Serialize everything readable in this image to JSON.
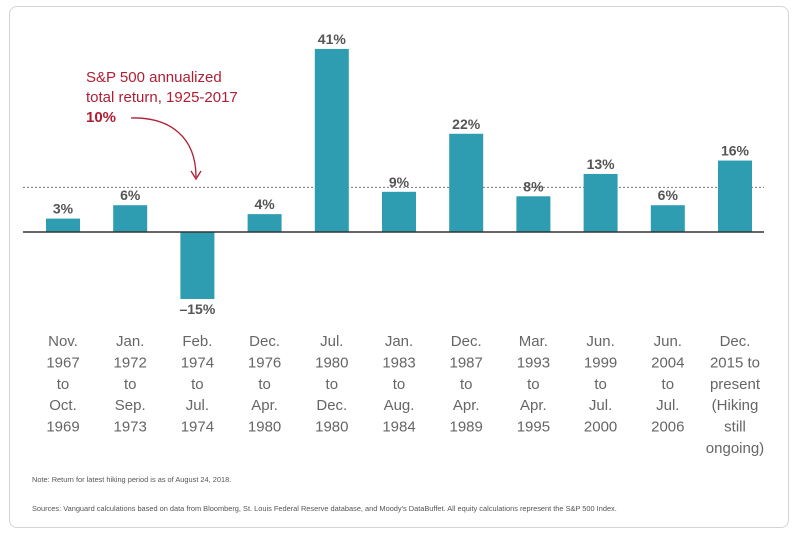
{
  "chart_data": {
    "type": "bar",
    "categories": [
      [
        "Nov.",
        "1967",
        "to",
        "Oct.",
        "1969"
      ],
      [
        "Jan.",
        "1972",
        "to",
        "Sep.",
        "1973"
      ],
      [
        "Feb.",
        "1974",
        "to",
        "Jul.",
        "1974"
      ],
      [
        "Dec.",
        "1976",
        "to",
        "Apr.",
        "1980"
      ],
      [
        "Jul.",
        "1980",
        "to",
        "Dec.",
        "1980"
      ],
      [
        "Jan.",
        "1983",
        "to",
        "Aug.",
        "1984"
      ],
      [
        "Dec.",
        "1987",
        "to",
        "Apr.",
        "1989"
      ],
      [
        "Mar.",
        "1993",
        "to",
        "Apr.",
        "1995"
      ],
      [
        "Jun.",
        "1999",
        "to",
        "Jul.",
        "2000"
      ],
      [
        "Jun.",
        "2004",
        "to",
        "Jul.",
        "2006"
      ],
      [
        "Dec.",
        "2015 to",
        "present",
        "(Hiking",
        "still",
        "ongoing)"
      ]
    ],
    "values": [
      3,
      6,
      -15,
      4,
      41,
      9,
      22,
      8,
      13,
      6,
      16
    ],
    "value_labels": [
      "3%",
      "6%",
      "–15%",
      "4%",
      "41%",
      "9%",
      "22%",
      "8%",
      "13%",
      "6%",
      "16%"
    ],
    "reference_line": {
      "value": 10,
      "label_lines": [
        "S&P 500 annualized",
        "total return, 1925-2017"
      ],
      "value_label": "10%",
      "style": "dotted"
    },
    "ylim": [
      -15,
      41
    ],
    "grid": false,
    "colors": {
      "bar": "#2e9db1",
      "annotation": "#b01e34",
      "axis": "#333333",
      "text": "#555555"
    }
  },
  "notes": {
    "note": "Note: Return for latest hiking period is as of August 24, 2018.",
    "sources": "Sources: Vanguard calculations based on data from Bloomberg, St. Louis Federal Reserve database, and Moody's DataBuffet. All equity calculations represent the S&P 500 Index."
  }
}
